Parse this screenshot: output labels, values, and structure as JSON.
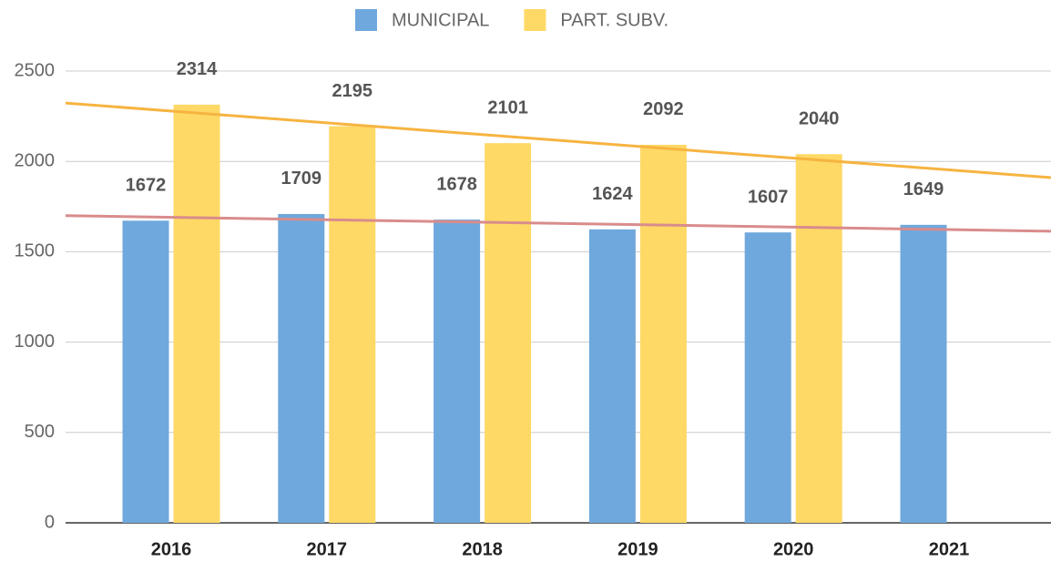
{
  "chart_data": {
    "type": "bar",
    "categories": [
      "2016",
      "2017",
      "2018",
      "2019",
      "2020",
      "2021"
    ],
    "series": [
      {
        "name": "MUNICIPAL",
        "color": "#6fa8dc",
        "trend_color": "#d98c8c",
        "values": [
          1672,
          1709,
          1678,
          1624,
          1607,
          1649
        ]
      },
      {
        "name": "PART. SUBV.",
        "color": "#ffd966",
        "trend_color": "#f6b440",
        "values": [
          2314,
          2195,
          2101,
          2092,
          2040,
          null
        ]
      }
    ],
    "ylim": [
      0,
      2500
    ],
    "yticks": [
      0,
      500,
      1000,
      1500,
      2000,
      2500
    ],
    "grid": true,
    "trendline": true,
    "legend": "top"
  }
}
